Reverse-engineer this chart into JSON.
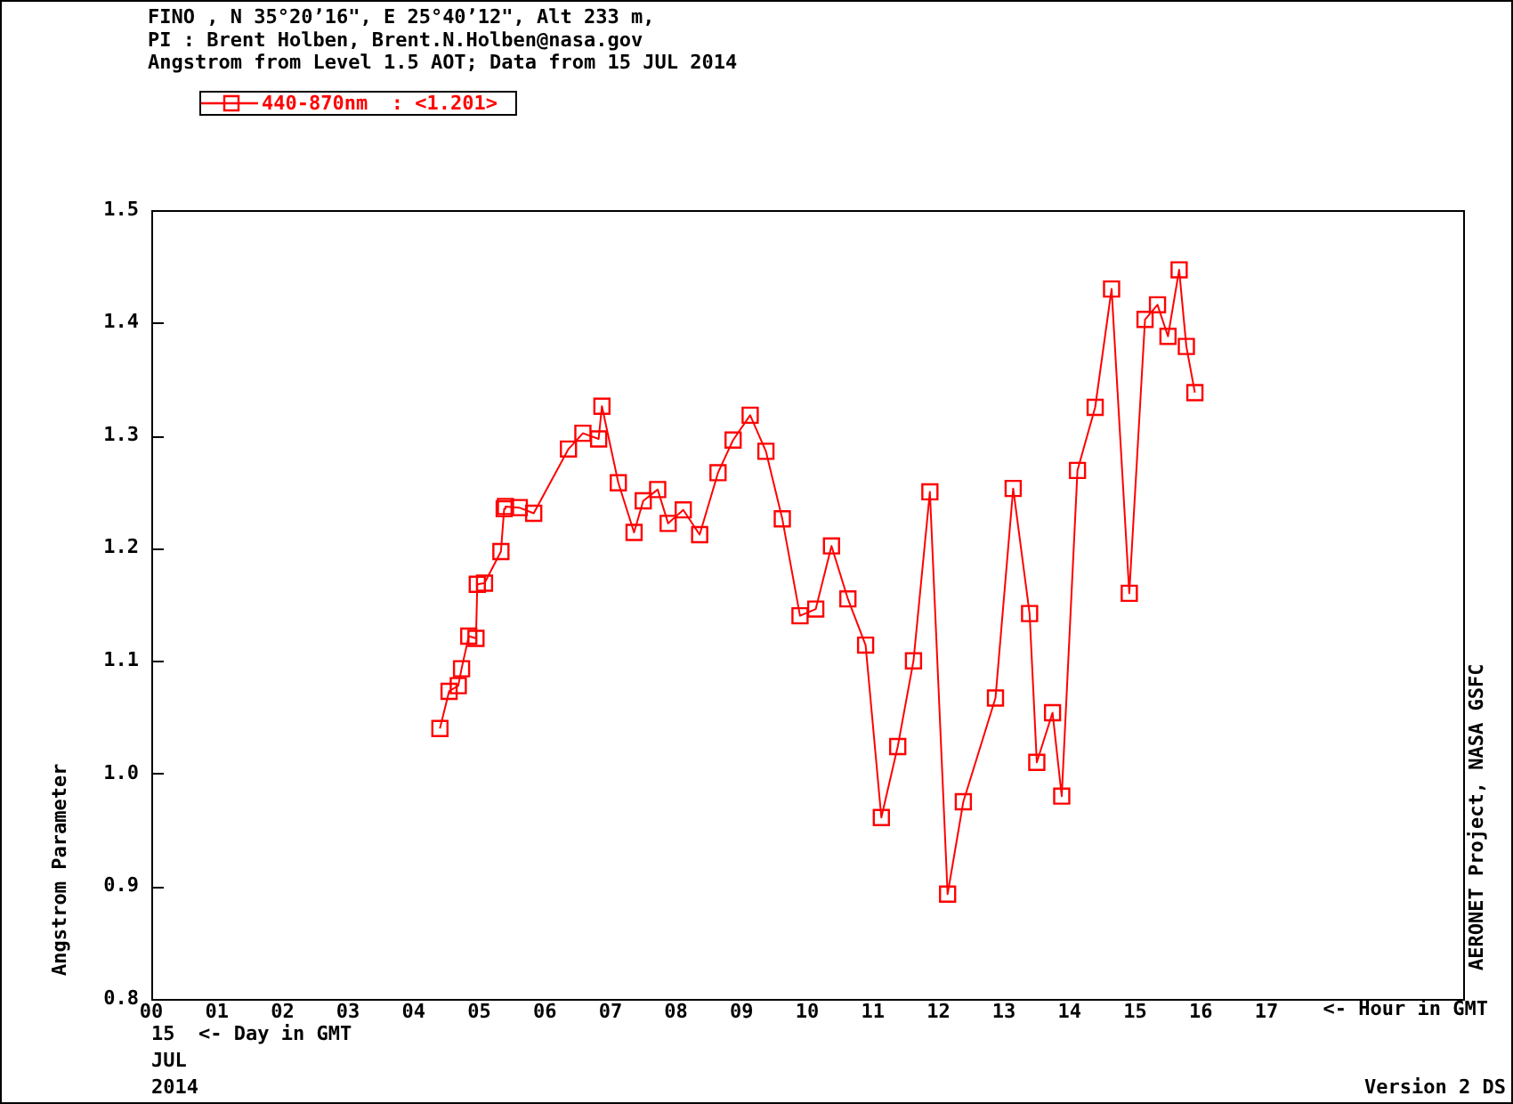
{
  "chart_data": {
    "type": "line",
    "title": "FINO , N 35°20’16\", E 25°40’12\", Alt 233 m,",
    "subtitle": "PI : Brent Holben, Brent.N.Holben@nasa.gov\nAngstrom from Level 1.5 AOT; Data from 15 JUL 2014",
    "xlabel": "<- Hour in GMT",
    "ylabel": "Angstrom Parameter",
    "annotations": [
      "15  <- Day in GMT",
      "JUL",
      "2014",
      "AERONET Project, NASA GSFC",
      "Version 2 DS"
    ],
    "x": [
      4.4,
      4.54,
      4.68,
      4.73,
      4.84,
      4.95,
      4.97,
      5.08,
      5.33,
      5.38,
      5.4,
      5.61,
      5.83,
      6.36,
      6.58,
      6.82,
      6.87,
      7.12,
      7.36,
      7.5,
      7.72,
      7.88,
      8.11,
      8.36,
      8.64,
      8.87,
      9.13,
      9.37,
      9.62,
      9.89,
      10.13,
      10.37,
      10.62,
      10.89,
      11.13,
      11.38,
      11.62,
      11.87,
      12.14,
      12.38,
      12.87,
      13.14,
      13.39,
      13.5,
      13.74,
      13.88,
      14.12,
      14.39,
      14.64,
      14.91,
      15.15,
      15.34,
      15.5,
      15.67,
      15.78,
      15.91
    ],
    "series": [
      {
        "name": "440-870nm  : <1.201>",
        "color": "#ff0000",
        "values": [
          1.04,
          1.073,
          1.078,
          1.093,
          1.122,
          1.12,
          1.168,
          1.169,
          1.197,
          1.235,
          1.237,
          1.236,
          1.231,
          1.288,
          1.302,
          1.297,
          1.326,
          1.258,
          1.214,
          1.242,
          1.252,
          1.222,
          1.234,
          1.212,
          1.267,
          1.296,
          1.318,
          1.286,
          1.226,
          1.14,
          1.146,
          1.202,
          1.155,
          1.114,
          0.961,
          1.024,
          1.1,
          1.25,
          0.893,
          0.975,
          1.067,
          1.253,
          1.142,
          1.01,
          1.054,
          0.98,
          1.269,
          1.325,
          1.43,
          1.16,
          1.403,
          1.416,
          1.388,
          1.447,
          1.379,
          1.338
        ]
      }
    ],
    "xlim": [
      0,
      20
    ],
    "ylim": [
      0.8,
      1.5
    ],
    "xticks": [
      {
        "value": 0,
        "label": "00"
      },
      {
        "value": 1,
        "label": "01"
      },
      {
        "value": 2,
        "label": "02"
      },
      {
        "value": 3,
        "label": "03"
      },
      {
        "value": 4,
        "label": "04"
      },
      {
        "value": 5,
        "label": "05"
      },
      {
        "value": 6,
        "label": "06"
      },
      {
        "value": 7,
        "label": "07"
      },
      {
        "value": 8,
        "label": "08"
      },
      {
        "value": 9,
        "label": "09"
      },
      10,
      11,
      12,
      13,
      14,
      15,
      16,
      17
    ],
    "yticks": [
      0.8,
      0.9,
      {
        "value": 1,
        "label": "1.0"
      },
      1.1,
      1.2,
      1.3,
      1.4,
      1.5
    ],
    "legend": "top left",
    "marker": "square",
    "line_style": "solid"
  }
}
